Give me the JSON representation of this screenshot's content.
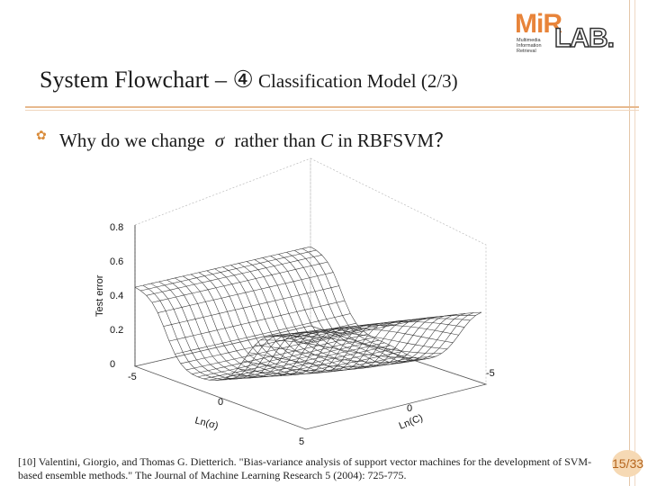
{
  "logo": {
    "mir": "MiR",
    "lab": "LAB.",
    "lines": [
      "Multimedia",
      "Information",
      "Retrieval"
    ]
  },
  "slide": {
    "title_main": "System Flowchart – ④",
    "title_sub": " Classification Model (2/3)",
    "bullet": {
      "part1": "Why do we change",
      "sigma": "σ",
      "part2": "rather than",
      "c": "C",
      "part3": "in RBFSVM？"
    }
  },
  "chart_data": {
    "type": "surface",
    "zlabel": "Test error",
    "xlabel": "Ln(σ)",
    "ylabel": "Ln(C)",
    "z_ticks": [
      "0",
      "0.2",
      "0.4",
      "0.6",
      "0.8"
    ],
    "x_ticks": [
      "-5",
      "0",
      "5"
    ],
    "y_ticks": [
      "-5",
      "0"
    ],
    "zlim": [
      0,
      0.8
    ]
  },
  "reference": "[10] Valentini, Giorgio, and Thomas G. Dietterich. \"Bias-variance analysis of support vector machines for the development of SVM-based ensemble methods.\" The Journal of Machine Learning Research 5 (2004): 725-775.",
  "page_number": "15/33",
  "colors": {
    "accent": "#e8843a",
    "rule": "#e7b98e",
    "bullet": "#d98b3a"
  },
  "icons": {
    "bullet": "settings-gear-icon"
  }
}
